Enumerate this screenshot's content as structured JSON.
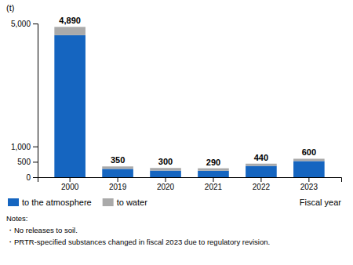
{
  "chart_data": {
    "type": "bar",
    "stacked": true,
    "categories": [
      "2000",
      "2019",
      "2020",
      "2021",
      "2022",
      "2023"
    ],
    "series": [
      {
        "name": "to the atmosphere",
        "color": "#1565C0",
        "values": [
          4620,
          270,
          215,
          210,
          368,
          525
        ]
      },
      {
        "name": "to water",
        "color": "#AAAAAA",
        "values": [
          270,
          80,
          85,
          80,
          72,
          75
        ]
      }
    ],
    "totals": [
      4890,
      350,
      300,
      290,
      440,
      600
    ],
    "total_labels": [
      "4,890",
      "350",
      "300",
      "290",
      "440",
      "600"
    ],
    "ylabel": "(t)",
    "xlabel": "Fiscal year",
    "ylim": [
      0,
      5000
    ],
    "yticks": [
      0,
      500,
      {
        "value": 1000,
        "label": "1,000"
      },
      {
        "value": 5000,
        "label": "5,000"
      }
    ],
    "grid": false,
    "legend": "bottom",
    "annotations": [
      "Notes:",
      "・No releases to soil.",
      "・PRTR-specified substances changed in fiscal 2023 due to regulatory revision."
    ]
  }
}
